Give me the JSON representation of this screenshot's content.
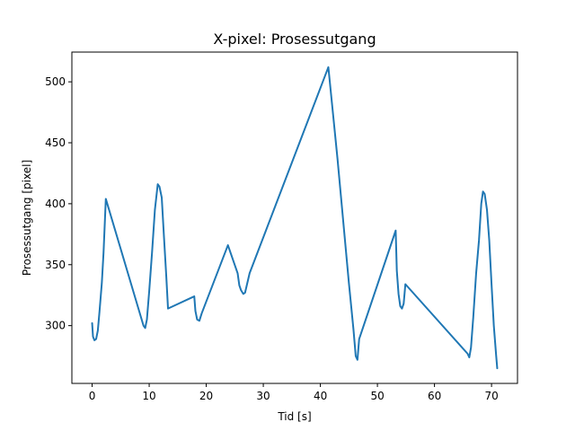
{
  "chart_data": {
    "type": "line",
    "title": "X-pixel: Prosessutgang",
    "xlabel": "Tid [s]",
    "ylabel": "Prosessutgang [pixel]",
    "xlim": [
      -3.55,
      74.55
    ],
    "ylim": [
      252.6,
      524.4
    ],
    "xticks": [
      0,
      10,
      20,
      30,
      40,
      50,
      60,
      70
    ],
    "yticks": [
      300,
      350,
      400,
      450,
      500
    ],
    "grid": false,
    "line_color": "#1f77b4",
    "series": [
      {
        "x": [
          0.0,
          0.15,
          0.4,
          0.7,
          1.0,
          1.3,
          1.7,
          2.0,
          2.4,
          9.0,
          9.3,
          9.6,
          10.0,
          10.5,
          11.0,
          11.5,
          11.8,
          12.2,
          12.6,
          13.0,
          13.3,
          17.9,
          18.1,
          18.4,
          18.8,
          19.2,
          23.8,
          25.5,
          25.8,
          26.1,
          26.5,
          26.8,
          27.1,
          27.6,
          41.4,
          43.0,
          45.0,
          45.8,
          46.2,
          46.5,
          46.8,
          53.2,
          53.4,
          53.7,
          54.0,
          54.3,
          54.6,
          54.9,
          65.8,
          66.1,
          66.4,
          66.8,
          67.3,
          67.8,
          68.2,
          68.5,
          68.8,
          69.2,
          69.6,
          70.0,
          70.4,
          70.8,
          71.0
        ],
        "y": [
          302,
          291,
          288,
          289,
          296,
          312,
          335,
          360,
          404,
          300,
          298,
          305,
          328,
          360,
          395,
          416,
          414,
          405,
          372,
          340,
          314,
          324,
          312,
          305,
          304,
          310,
          366,
          343,
          333,
          329,
          326,
          327,
          333,
          343,
          512,
          437,
          335,
          297,
          275,
          272,
          289,
          378,
          345,
          326,
          316,
          314,
          318,
          334,
          277,
          274,
          282,
          307,
          343,
          370,
          400,
          410,
          408,
          395,
          370,
          334,
          300,
          276,
          265
        ]
      }
    ]
  }
}
